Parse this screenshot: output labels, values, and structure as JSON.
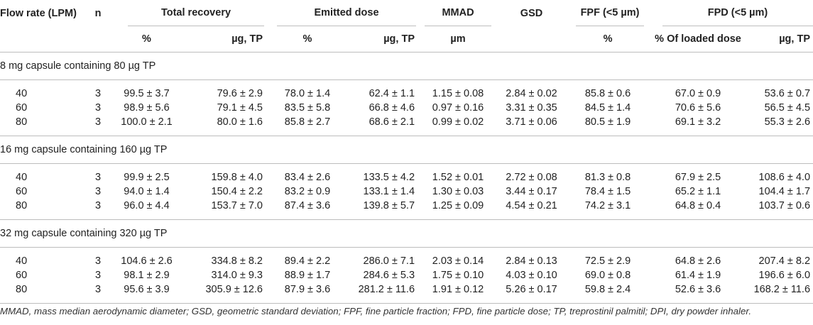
{
  "header": {
    "flow_rate": "Flow rate (LPM)",
    "n": "n",
    "total_recovery": "Total recovery",
    "emitted_dose": "Emitted dose",
    "mmad": "MMAD",
    "gsd": "GSD",
    "fpf": "FPF (<5 µm)",
    "fpd": "FPD (<5 µm)",
    "sub": {
      "tr_pct": "%",
      "tr_ug": "µg, TP",
      "ed_pct": "%",
      "ed_ug": "µg, TP",
      "mmad_unit": "µm",
      "fpf_pct": "%",
      "fpd_pct": "% Of loaded dose",
      "fpd_ug": "µg, TP"
    }
  },
  "sections": [
    {
      "title": "8 mg capsule containing 80 µg TP",
      "rows": [
        {
          "flow": "40",
          "n": "3",
          "tr_pct": "99.5 ± 3.7",
          "tr_ug": "79.6 ± 2.9",
          "ed_pct": "78.0 ± 1.4",
          "ed_ug": "62.4 ± 1.1",
          "mmad": "1.15 ± 0.08",
          "gsd": "2.84 ± 0.02",
          "fpf": "85.8 ± 0.6",
          "fpd_pct": "67.0 ± 0.9",
          "fpd_ug": "53.6 ± 0.7"
        },
        {
          "flow": "60",
          "n": "3",
          "tr_pct": "98.9 ± 5.6",
          "tr_ug": "79.1 ± 4.5",
          "ed_pct": "83.5 ± 5.8",
          "ed_ug": "66.8 ± 4.6",
          "mmad": "0.97 ± 0.16",
          "gsd": "3.31 ± 0.35",
          "fpf": "84.5 ± 1.4",
          "fpd_pct": "70.6 ± 5.6",
          "fpd_ug": "56.5 ± 4.5"
        },
        {
          "flow": "80",
          "n": "3",
          "tr_pct": "100.0 ± 2.1",
          "tr_ug": "80.0 ± 1.6",
          "ed_pct": "85.8 ± 2.7",
          "ed_ug": "68.6 ± 2.1",
          "mmad": "0.99 ± 0.02",
          "gsd": "3.71 ± 0.06",
          "fpf": "80.5 ± 1.9",
          "fpd_pct": "69.1 ± 3.2",
          "fpd_ug": "55.3 ± 2.6"
        }
      ]
    },
    {
      "title": "16 mg capsule containing 160 µg TP",
      "rows": [
        {
          "flow": "40",
          "n": "3",
          "tr_pct": "99.9 ± 2.5",
          "tr_ug": "159.8 ± 4.0",
          "ed_pct": "83.4 ± 2.6",
          "ed_ug": "133.5 ± 4.2",
          "mmad": "1.52 ± 0.01",
          "gsd": "2.72 ± 0.08",
          "fpf": "81.3 ± 0.8",
          "fpd_pct": "67.9 ± 2.5",
          "fpd_ug": "108.6 ± 4.0"
        },
        {
          "flow": "60",
          "n": "3",
          "tr_pct": "94.0 ± 1.4",
          "tr_ug": "150.4 ± 2.2",
          "ed_pct": "83.2 ± 0.9",
          "ed_ug": "133.1 ± 1.4",
          "mmad": "1.30 ± 0.03",
          "gsd": "3.44 ± 0.17",
          "fpf": "78.4 ± 1.5",
          "fpd_pct": "65.2 ± 1.1",
          "fpd_ug": "104.4 ± 1.7"
        },
        {
          "flow": "80",
          "n": "3",
          "tr_pct": "96.0 ± 4.4",
          "tr_ug": "153.7 ± 7.0",
          "ed_pct": "87.4 ± 3.6",
          "ed_ug": "139.8 ± 5.7",
          "mmad": "1.25 ± 0.09",
          "gsd": "4.54 ± 0.21",
          "fpf": "74.2 ± 3.1",
          "fpd_pct": "64.8 ± 0.4",
          "fpd_ug": "103.7 ± 0.6"
        }
      ]
    },
    {
      "title": "32 mg capsule containing 320 µg TP",
      "rows": [
        {
          "flow": "40",
          "n": "3",
          "tr_pct": "104.6 ± 2.6",
          "tr_ug": "334.8 ± 8.2",
          "ed_pct": "89.4 ± 2.2",
          "ed_ug": "286.0 ± 7.1",
          "mmad": "2.03 ± 0.14",
          "gsd": "2.84 ± 0.13",
          "fpf": "72.5 ± 2.9",
          "fpd_pct": "64.8 ± 2.6",
          "fpd_ug": "207.4 ± 8.2"
        },
        {
          "flow": "60",
          "n": "3",
          "tr_pct": "98.1 ± 2.9",
          "tr_ug": "314.0 ± 9.3",
          "ed_pct": "88.9 ± 1.7",
          "ed_ug": "284.6 ± 5.3",
          "mmad": "1.75 ± 0.10",
          "gsd": "4.03 ± 0.10",
          "fpf": "69.0 ± 0.8",
          "fpd_pct": "61.4 ± 1.9",
          "fpd_ug": "196.6 ± 6.0"
        },
        {
          "flow": "80",
          "n": "3",
          "tr_pct": "95.6 ± 3.9",
          "tr_ug": "305.9 ± 12.6",
          "ed_pct": "87.9 ± 3.6",
          "ed_ug": "281.2 ± 11.6",
          "mmad": "1.91 ± 0.12",
          "gsd": "5.26 ± 0.17",
          "fpf": "59.8 ± 2.4",
          "fpd_pct": "52.6 ± 3.6",
          "fpd_ug": "168.2 ± 11.6"
        }
      ]
    }
  ],
  "footnote": "MMAD, mass median aerodynamic diameter; GSD, geometric standard deviation; FPF, fine particle fraction; FPD, fine particle dose; TP, treprostinil palmitil; DPI, dry powder inhaler."
}
